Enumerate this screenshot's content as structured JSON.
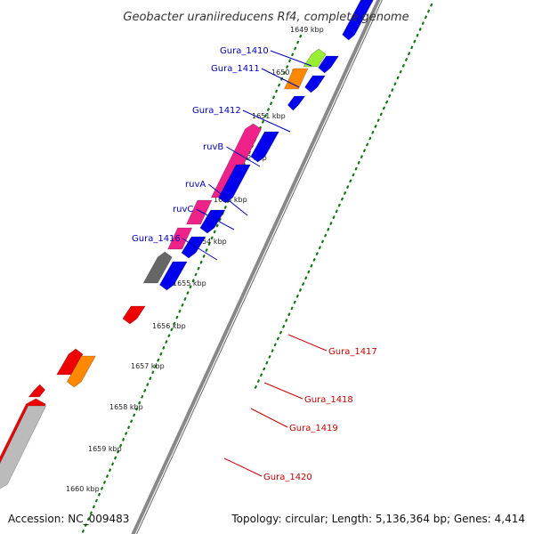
{
  "title": "Geobacter uraniireducens Rf4, complete genome",
  "accession": "Accession: NC_009483",
  "topology": "Topology: circular; Length: 5,136,364 bp; Genes: 4,414",
  "kbp_labels": [
    "1649 kbp",
    "1650 kbp",
    "1651 kbp",
    "1652 kbp",
    "1653 kbp",
    "1654 kbp",
    "1655 kbp",
    "1656 kbp",
    "1657 kbp",
    "1658 kbp",
    "1659 kbp",
    "1660 kbp"
  ],
  "gene_labels_left": [
    "Gura_1410",
    "Gura_1411",
    "Gura_1412",
    "ruvB",
    "ruvA",
    "ruvC",
    "Gura_1416"
  ],
  "gene_labels_right": [
    "Gura_1417",
    "Gura_1418",
    "Gura_1419",
    "Gura_1420"
  ],
  "colors": {
    "left_label": "#0000bb",
    "right_label": "#cc0000",
    "forward_cds": "#0000ee",
    "reverse_red": "#ee0000",
    "magenta": "#ee2288",
    "orange": "#ff8800",
    "lime": "#99ee33",
    "gray": "#666666",
    "light_gray": "#bbbbbb",
    "green": "#33cc33",
    "tick_green": "#117711",
    "backbone": "#888888"
  }
}
